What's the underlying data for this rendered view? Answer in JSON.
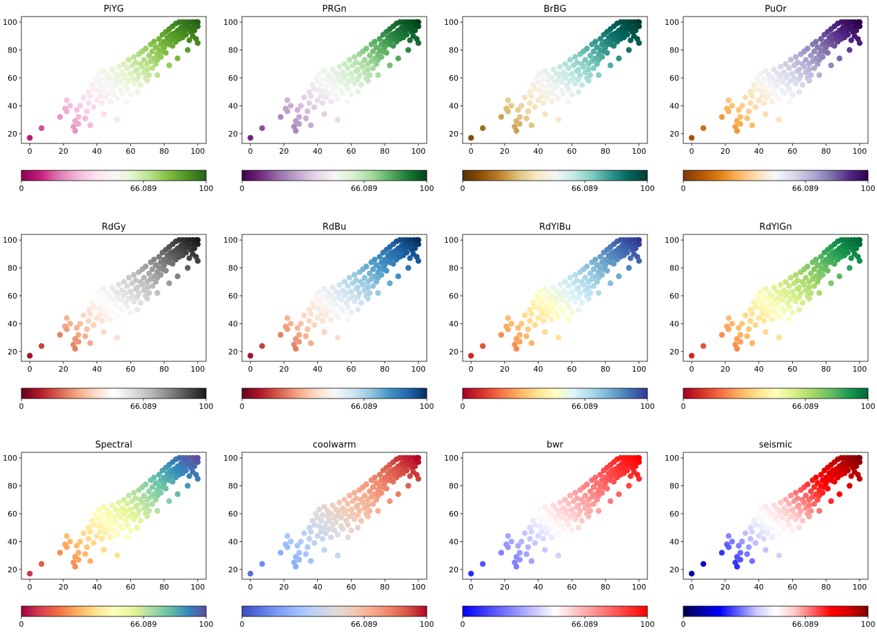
{
  "chart_data": {
    "type": "scatter",
    "x": [
      0,
      7,
      18,
      21,
      22,
      22,
      24,
      26,
      27,
      27,
      28,
      29,
      29,
      30,
      32,
      33,
      34,
      35,
      35,
      36,
      37,
      38,
      38,
      39,
      40,
      40,
      41,
      41,
      42,
      42,
      43,
      43,
      44,
      44,
      45,
      45,
      46,
      46,
      47,
      47,
      48,
      48,
      49,
      49,
      50,
      50,
      51,
      51,
      52,
      52,
      53,
      53,
      54,
      54,
      55,
      55,
      56,
      56,
      57,
      57,
      58,
      58,
      59,
      59,
      60,
      60,
      61,
      61,
      62,
      62,
      63,
      63,
      64,
      64,
      65,
      65,
      66,
      66,
      67,
      67,
      68,
      68,
      69,
      69,
      70,
      70,
      71,
      71,
      72,
      72,
      73,
      73,
      74,
      74,
      75,
      75,
      76,
      76,
      77,
      77,
      78,
      78,
      79,
      79,
      80,
      80,
      81,
      81,
      82,
      82,
      83,
      83,
      84,
      84,
      85,
      85,
      86,
      86,
      87,
      87,
      88,
      88,
      89,
      89,
      90,
      90,
      91,
      91,
      92,
      92,
      93,
      93,
      94,
      94,
      95,
      95,
      96,
      96,
      97,
      97,
      98,
      98,
      99,
      99,
      100,
      100,
      36,
      44,
      52,
      58,
      64,
      70,
      76,
      83,
      88,
      94,
      100
    ],
    "y": [
      17,
      24,
      32,
      38,
      44,
      36,
      40,
      25,
      29,
      22,
      37,
      32,
      27,
      40,
      46,
      31,
      36,
      42,
      50,
      47,
      55,
      39,
      52,
      60,
      44,
      57,
      51,
      63,
      47,
      55,
      59,
      42,
      50,
      65,
      53,
      46,
      58,
      62,
      49,
      55,
      43,
      60,
      52,
      66,
      57,
      48,
      63,
      54,
      59,
      45,
      62,
      68,
      51,
      57,
      64,
      49,
      60,
      70,
      55,
      62,
      67,
      52,
      73,
      58,
      63,
      48,
      69,
      60,
      75,
      56,
      65,
      71,
      59,
      66,
      77,
      62,
      70,
      55,
      68,
      79,
      64,
      73,
      60,
      81,
      70,
      66,
      76,
      62,
      84,
      72,
      67,
      79,
      74,
      86,
      70,
      82,
      77,
      73,
      88,
      80,
      84,
      75,
      91,
      79,
      86,
      82,
      93,
      78,
      89,
      85,
      95,
      84,
      91,
      87,
      97,
      83,
      92,
      89,
      99,
      86,
      94,
      90,
      100,
      88,
      96,
      92,
      100,
      89,
      97,
      94,
      100,
      91,
      98,
      95,
      100,
      87,
      96,
      93,
      100,
      90,
      98,
      94,
      100,
      88,
      97,
      100,
      26,
      34,
      30,
      43,
      50,
      58,
      62,
      69,
      74,
      80,
      85
    ],
    "axis": {
      "xlim": [
        -5,
        105
      ],
      "ylim": [
        13,
        104
      ],
      "xticks": [
        "0",
        "20",
        "40",
        "60",
        "80",
        "100"
      ],
      "yticks": [
        "20",
        "40",
        "60",
        "80",
        "100"
      ]
    },
    "colorbar": {
      "labels": [
        "0",
        "66.089",
        "100"
      ],
      "min": 0,
      "max": 100,
      "center": 66.089
    },
    "panels": [
      {
        "title": "PiYG",
        "stops": [
          "#8e0152",
          "#c51b7d",
          "#de77ae",
          "#f1b6da",
          "#fde0ef",
          "#f7f7f7",
          "#e6f5d0",
          "#b8e186",
          "#7fbc41",
          "#4d9221",
          "#276419"
        ]
      },
      {
        "title": "PRGn",
        "stops": [
          "#40004b",
          "#762a83",
          "#9970ab",
          "#c2a5cf",
          "#e7d4e8",
          "#f7f7f7",
          "#d9f0d3",
          "#a6dba0",
          "#5aae61",
          "#1b7837",
          "#00441b"
        ]
      },
      {
        "title": "BrBG",
        "stops": [
          "#543005",
          "#8c510a",
          "#bf812d",
          "#dfc27d",
          "#f6e8c3",
          "#f5f5f5",
          "#c7eae5",
          "#80cdc1",
          "#35978f",
          "#01665e",
          "#003c30"
        ]
      },
      {
        "title": "PuOr",
        "stops": [
          "#7f3b08",
          "#b35806",
          "#e08214",
          "#fdb863",
          "#fee0b6",
          "#f7f7f7",
          "#d8daeb",
          "#b2abd2",
          "#8073ac",
          "#542788",
          "#2d004b"
        ]
      },
      {
        "title": "RdGy",
        "stops": [
          "#67001f",
          "#b2182b",
          "#d6604d",
          "#f4a582",
          "#fddbc7",
          "#ffffff",
          "#e0e0e0",
          "#bababa",
          "#878787",
          "#4d4d4d",
          "#1a1a1a"
        ]
      },
      {
        "title": "RdBu",
        "stops": [
          "#67001f",
          "#b2182b",
          "#d6604d",
          "#f4a582",
          "#fddbc7",
          "#f7f7f7",
          "#d1e5f0",
          "#92c5de",
          "#4393c3",
          "#2166ac",
          "#053061"
        ]
      },
      {
        "title": "RdYlBu",
        "stops": [
          "#a50026",
          "#d73027",
          "#f46d43",
          "#fdae61",
          "#fee090",
          "#ffffbf",
          "#e0f3f8",
          "#abd9e9",
          "#74add1",
          "#4575b4",
          "#313695"
        ]
      },
      {
        "title": "RdYlGn",
        "stops": [
          "#a50026",
          "#d73027",
          "#f46d43",
          "#fdae61",
          "#fee08b",
          "#ffffbf",
          "#d9ef8b",
          "#a6d96a",
          "#66bd63",
          "#1a9850",
          "#006837"
        ]
      },
      {
        "title": "Spectral",
        "stops": [
          "#9e0142",
          "#d53e4f",
          "#f46d43",
          "#fdae61",
          "#fee08b",
          "#ffffbf",
          "#e6f598",
          "#abdda4",
          "#66c2a5",
          "#3288bd",
          "#5e4fa2"
        ]
      },
      {
        "title": "coolwarm",
        "stops": [
          "#3b4cc0",
          "#5977e3",
          "#7b9ff9",
          "#9ebeff",
          "#c0d4f5",
          "#dddcdc",
          "#f2cbb7",
          "#f7ac8e",
          "#ee8468",
          "#d65244",
          "#b40426"
        ]
      },
      {
        "title": "bwr",
        "stops": [
          "#0000ff",
          "#3333ff",
          "#6666ff",
          "#9999ff",
          "#ccccff",
          "#ffffff",
          "#ffcccc",
          "#ff9999",
          "#ff6666",
          "#ff3333",
          "#ff0000"
        ]
      },
      {
        "title": "seismic",
        "stops": [
          "#00004c",
          "#0000a6",
          "#0000ff",
          "#6666ff",
          "#ccccff",
          "#ffffff",
          "#ffcccc",
          "#ff6666",
          "#ff0000",
          "#d40000",
          "#800000"
        ]
      }
    ]
  }
}
